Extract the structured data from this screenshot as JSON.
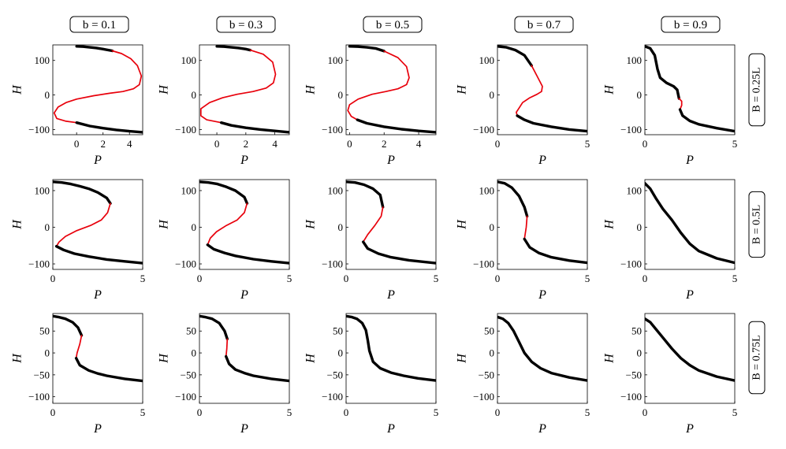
{
  "figure": {
    "columns": [
      {
        "label": "b = 0.1"
      },
      {
        "label": "b = 0.3"
      },
      {
        "label": "b = 0.5"
      },
      {
        "label": "b = 0.7"
      },
      {
        "label": "b = 0.9"
      }
    ],
    "rows": [
      {
        "label": "B = 0.25L"
      },
      {
        "label": "B = 0.5L"
      },
      {
        "label": "B = 0.75L"
      }
    ],
    "x_label": "P",
    "y_label": "H",
    "colors": {
      "stable": "#000000",
      "unstable": "#e8000b"
    }
  },
  "chart_data": [
    {
      "type": "line",
      "row": "B = 0.25L",
      "col": "b = 0.1",
      "xlabel": "P",
      "ylabel": "H",
      "xlim": [
        -1.8,
        5
      ],
      "ylim": [
        -115,
        145
      ],
      "xticks": [
        0,
        2,
        4
      ],
      "yticks": [
        -100,
        0,
        100
      ],
      "series": [
        {
          "style": "stable",
          "x": [
            0,
            0.5,
            1,
            1.5,
            2,
            2.7
          ],
          "y": [
            141,
            140,
            138,
            136,
            133,
            128
          ]
        },
        {
          "style": "unstable",
          "x": [
            2.7,
            3.4,
            4.1,
            4.6,
            4.9,
            4.75,
            4.3,
            3.5,
            2.5,
            1.3,
            0,
            -0.8,
            -1.4,
            -1.7,
            -1.5,
            -0.8,
            0
          ],
          "y": [
            128,
            120,
            105,
            85,
            55,
            30,
            18,
            10,
            5,
            -2,
            -12,
            -22,
            -35,
            -52,
            -68,
            -76,
            -80
          ]
        },
        {
          "style": "stable",
          "x": [
            0,
            1,
            2,
            3,
            4,
            5
          ],
          "y": [
            -80,
            -90,
            -96,
            -101,
            -105,
            -108
          ]
        }
      ]
    },
    {
      "type": "line",
      "row": "B = 0.25L",
      "col": "b = 0.3",
      "xlabel": "P",
      "ylabel": "H",
      "xlim": [
        -1.2,
        5
      ],
      "ylim": [
        -115,
        145
      ],
      "xticks": [
        0,
        2,
        4
      ],
      "yticks": [
        -100,
        0,
        100
      ],
      "series": [
        {
          "style": "stable",
          "x": [
            0,
            0.5,
            1,
            1.5,
            2,
            2.3
          ],
          "y": [
            141,
            140,
            138,
            136,
            133,
            130
          ]
        },
        {
          "style": "unstable",
          "x": [
            2.3,
            3.2,
            3.85,
            4.05,
            3.9,
            3.4,
            2.5,
            1.4,
            0.4,
            -0.5,
            -1.1,
            -1.1,
            -0.7,
            0.3
          ],
          "y": [
            130,
            118,
            95,
            60,
            35,
            20,
            10,
            2,
            -8,
            -22,
            -40,
            -60,
            -72,
            -80
          ]
        },
        {
          "style": "stable",
          "x": [
            0.3,
            1,
            2,
            3,
            4,
            5
          ],
          "y": [
            -80,
            -88,
            -95,
            -100,
            -104,
            -108
          ]
        }
      ]
    },
    {
      "type": "line",
      "row": "B = 0.25L",
      "col": "b = 0.5",
      "xlabel": "P",
      "ylabel": "H",
      "xlim": [
        -0.2,
        5
      ],
      "ylim": [
        -115,
        145
      ],
      "xticks": [
        0,
        2,
        4
      ],
      "yticks": [
        -100,
        0,
        100
      ],
      "series": [
        {
          "style": "stable",
          "x": [
            0,
            0.5,
            1,
            1.5,
            2
          ],
          "y": [
            141,
            140,
            138,
            135,
            127
          ]
        },
        {
          "style": "unstable",
          "x": [
            2,
            2.8,
            3.3,
            3.45,
            3.3,
            2.8,
            2.1,
            1.3,
            0.5,
            0,
            -0.1,
            0.1,
            0.45
          ],
          "y": [
            127,
            108,
            82,
            50,
            30,
            18,
            10,
            2,
            -12,
            -28,
            -45,
            -62,
            -72
          ]
        },
        {
          "style": "stable",
          "x": [
            0.45,
            1,
            2,
            3,
            4,
            5
          ],
          "y": [
            -72,
            -82,
            -92,
            -99,
            -104,
            -108
          ]
        }
      ]
    },
    {
      "type": "line",
      "row": "B = 0.25L",
      "col": "b = 0.7",
      "xlabel": "P",
      "ylabel": "H",
      "xlim": [
        0,
        5
      ],
      "ylim": [
        -115,
        145
      ],
      "xticks": [
        0,
        5
      ],
      "yticks": [
        -100,
        0,
        100
      ],
      "series": [
        {
          "style": "stable",
          "x": [
            0,
            0.5,
            1,
            1.5,
            1.9
          ],
          "y": [
            141,
            138,
            130,
            115,
            85
          ]
        },
        {
          "style": "unstable",
          "x": [
            1.9,
            2.2,
            2.5,
            2.45,
            2.2,
            1.8,
            1.4,
            1.2,
            1.05,
            1.1
          ],
          "y": [
            85,
            55,
            25,
            10,
            2,
            -8,
            -22,
            -38,
            -50,
            -60
          ]
        },
        {
          "style": "stable",
          "x": [
            1.1,
            1.5,
            2,
            3,
            4,
            5
          ],
          "y": [
            -60,
            -72,
            -82,
            -92,
            -100,
            -105
          ]
        }
      ]
    },
    {
      "type": "line",
      "row": "B = 0.25L",
      "col": "b = 0.9",
      "xlabel": "P",
      "ylabel": "H",
      "xlim": [
        0,
        5
      ],
      "ylim": [
        -115,
        145
      ],
      "xticks": [
        0,
        5
      ],
      "yticks": [
        -100,
        0,
        100
      ],
      "series": [
        {
          "style": "stable",
          "x": [
            0,
            0.3,
            0.55,
            0.7,
            0.85,
            1.2,
            1.6,
            1.8,
            1.9
          ],
          "y": [
            141,
            135,
            115,
            75,
            50,
            35,
            25,
            15,
            -10
          ]
        },
        {
          "style": "unstable",
          "x": [
            1.9,
            2.05,
            2.05,
            1.95
          ],
          "y": [
            -10,
            -18,
            -30,
            -42
          ]
        },
        {
          "style": "stable",
          "x": [
            1.95,
            2.1,
            2.5,
            3,
            4,
            5
          ],
          "y": [
            -42,
            -60,
            -75,
            -85,
            -96,
            -105
          ]
        }
      ]
    },
    {
      "type": "line",
      "row": "B = 0.5L",
      "col": "b = 0.1",
      "xlabel": "P",
      "ylabel": "H",
      "xlim": [
        0,
        5
      ],
      "ylim": [
        -115,
        130
      ],
      "xticks": [
        0,
        5
      ],
      "yticks": [
        -100,
        0,
        100
      ],
      "series": [
        {
          "style": "stable",
          "x": [
            0,
            0.5,
            1,
            1.5,
            2,
            2.5,
            3,
            3.2
          ],
          "y": [
            124,
            122,
            118,
            112,
            105,
            95,
            80,
            65
          ]
        },
        {
          "style": "unstable",
          "x": [
            3.2,
            3.05,
            2.7,
            2.1,
            1.3,
            0.7,
            0.35,
            0.2
          ],
          "y": [
            65,
            40,
            20,
            5,
            -10,
            -25,
            -40,
            -52
          ]
        },
        {
          "style": "stable",
          "x": [
            0.2,
            0.6,
            1.2,
            2,
            3,
            4,
            5
          ],
          "y": [
            -52,
            -62,
            -72,
            -80,
            -88,
            -93,
            -98
          ]
        }
      ]
    },
    {
      "type": "line",
      "row": "B = 0.5L",
      "col": "b = 0.3",
      "xlabel": "P",
      "ylabel": "H",
      "xlim": [
        0,
        5
      ],
      "ylim": [
        -115,
        130
      ],
      "xticks": [
        0,
        5
      ],
      "yticks": [
        -100,
        0,
        100
      ],
      "series": [
        {
          "style": "stable",
          "x": [
            0,
            0.5,
            1,
            1.5,
            2,
            2.5,
            2.65
          ],
          "y": [
            124,
            122,
            118,
            110,
            100,
            82,
            65
          ]
        },
        {
          "style": "unstable",
          "x": [
            2.65,
            2.5,
            2.1,
            1.5,
            0.95,
            0.6,
            0.45
          ],
          "y": [
            65,
            40,
            20,
            5,
            -12,
            -30,
            -48
          ]
        },
        {
          "style": "stable",
          "x": [
            0.45,
            0.8,
            1.4,
            2,
            3,
            4,
            5
          ],
          "y": [
            -48,
            -60,
            -70,
            -78,
            -87,
            -93,
            -98
          ]
        }
      ]
    },
    {
      "type": "line",
      "row": "B = 0.5L",
      "col": "b = 0.5",
      "xlabel": "P",
      "ylabel": "H",
      "xlim": [
        0,
        5
      ],
      "ylim": [
        -115,
        130
      ],
      "xticks": [
        0,
        5
      ],
      "yticks": [
        -100,
        0,
        100
      ],
      "series": [
        {
          "style": "stable",
          "x": [
            0,
            0.5,
            1,
            1.5,
            1.9,
            2.05
          ],
          "y": [
            124,
            122,
            116,
            105,
            88,
            55
          ]
        },
        {
          "style": "unstable",
          "x": [
            2.05,
            1.95,
            1.6,
            1.2,
            0.95
          ],
          "y": [
            55,
            30,
            5,
            -20,
            -40
          ]
        },
        {
          "style": "stable",
          "x": [
            0.95,
            1.2,
            1.8,
            2.5,
            3.5,
            5
          ],
          "y": [
            -40,
            -58,
            -72,
            -82,
            -90,
            -98
          ]
        }
      ]
    },
    {
      "type": "line",
      "row": "B = 0.5L",
      "col": "b = 0.7",
      "xlabel": "P",
      "ylabel": "H",
      "xlim": [
        0,
        5
      ],
      "ylim": [
        -115,
        130
      ],
      "xticks": [
        0,
        5
      ],
      "yticks": [
        -100,
        0,
        100
      ],
      "series": [
        {
          "style": "stable",
          "x": [
            0,
            0.4,
            0.8,
            1.2,
            1.5,
            1.65
          ],
          "y": [
            124,
            120,
            108,
            85,
            55,
            30
          ]
        },
        {
          "style": "unstable",
          "x": [
            1.65,
            1.6,
            1.5
          ],
          "y": [
            30,
            0,
            -32
          ]
        },
        {
          "style": "stable",
          "x": [
            1.5,
            1.8,
            2.3,
            3,
            4,
            5
          ],
          "y": [
            -32,
            -55,
            -70,
            -82,
            -91,
            -97
          ]
        }
      ]
    },
    {
      "type": "line",
      "row": "B = 0.5L",
      "col": "b = 0.9",
      "xlabel": "P",
      "ylabel": "H",
      "xlim": [
        0,
        5
      ],
      "ylim": [
        -115,
        130
      ],
      "xticks": [
        0,
        5
      ],
      "yticks": [
        -100,
        0,
        100
      ],
      "series": [
        {
          "style": "stable",
          "x": [
            0,
            0.3,
            0.6,
            1,
            1.5,
            2,
            2.5,
            3,
            4,
            5
          ],
          "y": [
            120,
            105,
            80,
            50,
            20,
            -15,
            -45,
            -65,
            -85,
            -97
          ]
        }
      ]
    },
    {
      "type": "line",
      "row": "B = 0.75L",
      "col": "b = 0.1",
      "xlabel": "P",
      "ylabel": "H",
      "xlim": [
        0,
        5
      ],
      "ylim": [
        -115,
        90
      ],
      "xticks": [
        0,
        5
      ],
      "yticks": [
        -100,
        -50,
        0,
        50
      ],
      "series": [
        {
          "style": "stable",
          "x": [
            0,
            0.3,
            0.7,
            1.1,
            1.4,
            1.6
          ],
          "y": [
            84,
            82,
            78,
            70,
            58,
            40
          ]
        },
        {
          "style": "unstable",
          "x": [
            1.6,
            1.5,
            1.35,
            1.3
          ],
          "y": [
            40,
            20,
            0,
            -12
          ]
        },
        {
          "style": "stable",
          "x": [
            1.3,
            1.5,
            2,
            2.5,
            3,
            4,
            5
          ],
          "y": [
            -12,
            -28,
            -40,
            -47,
            -52,
            -59,
            -64
          ]
        }
      ]
    },
    {
      "type": "line",
      "row": "B = 0.75L",
      "col": "b = 0.3",
      "xlabel": "P",
      "ylabel": "H",
      "xlim": [
        0,
        5
      ],
      "ylim": [
        -115,
        90
      ],
      "xticks": [
        0,
        5
      ],
      "yticks": [
        -100,
        -50,
        0,
        50
      ],
      "series": [
        {
          "style": "stable",
          "x": [
            0,
            0.3,
            0.7,
            1.1,
            1.4,
            1.55
          ],
          "y": [
            84,
            82,
            78,
            68,
            50,
            32
          ]
        },
        {
          "style": "unstable",
          "x": [
            1.55,
            1.52,
            1.48
          ],
          "y": [
            32,
            10,
            -8
          ]
        },
        {
          "style": "stable",
          "x": [
            1.48,
            1.65,
            2,
            2.5,
            3,
            4,
            5
          ],
          "y": [
            -8,
            -25,
            -38,
            -46,
            -52,
            -59,
            -64
          ]
        }
      ]
    },
    {
      "type": "line",
      "row": "B = 0.75L",
      "col": "b = 0.5",
      "xlabel": "P",
      "ylabel": "H",
      "xlim": [
        0,
        5
      ],
      "ylim": [
        -115,
        90
      ],
      "xticks": [
        0,
        5
      ],
      "yticks": [
        -100,
        -50,
        0,
        50
      ],
      "series": [
        {
          "style": "stable",
          "x": [
            0,
            0.3,
            0.6,
            0.9,
            1.1,
            1.2,
            1.3,
            1.5,
            1.9,
            2.5,
            3.2,
            4,
            5
          ],
          "y": [
            84,
            82,
            78,
            68,
            52,
            30,
            5,
            -20,
            -35,
            -45,
            -52,
            -58,
            -63
          ]
        }
      ]
    },
    {
      "type": "line",
      "row": "B = 0.75L",
      "col": "b = 0.7",
      "xlabel": "P",
      "ylabel": "H",
      "xlim": [
        0,
        5
      ],
      "ylim": [
        -115,
        90
      ],
      "xticks": [
        0,
        5
      ],
      "yticks": [
        -100,
        -50,
        0,
        50
      ],
      "series": [
        {
          "style": "stable",
          "x": [
            0,
            0.3,
            0.6,
            0.9,
            1.2,
            1.5,
            1.9,
            2.4,
            3,
            4,
            5
          ],
          "y": [
            82,
            78,
            68,
            50,
            25,
            0,
            -20,
            -35,
            -46,
            -56,
            -63
          ]
        }
      ]
    },
    {
      "type": "line",
      "row": "B = 0.75L",
      "col": "b = 0.9",
      "xlabel": "P",
      "ylabel": "H",
      "xlim": [
        0,
        5
      ],
      "ylim": [
        -115,
        90
      ],
      "xticks": [
        0,
        5
      ],
      "yticks": [
        -100,
        -50,
        0,
        50
      ],
      "series": [
        {
          "style": "stable",
          "x": [
            0,
            0.3,
            0.6,
            1,
            1.5,
            2,
            2.5,
            3,
            4,
            5
          ],
          "y": [
            78,
            70,
            55,
            35,
            10,
            -12,
            -28,
            -40,
            -54,
            -63
          ]
        }
      ]
    }
  ]
}
